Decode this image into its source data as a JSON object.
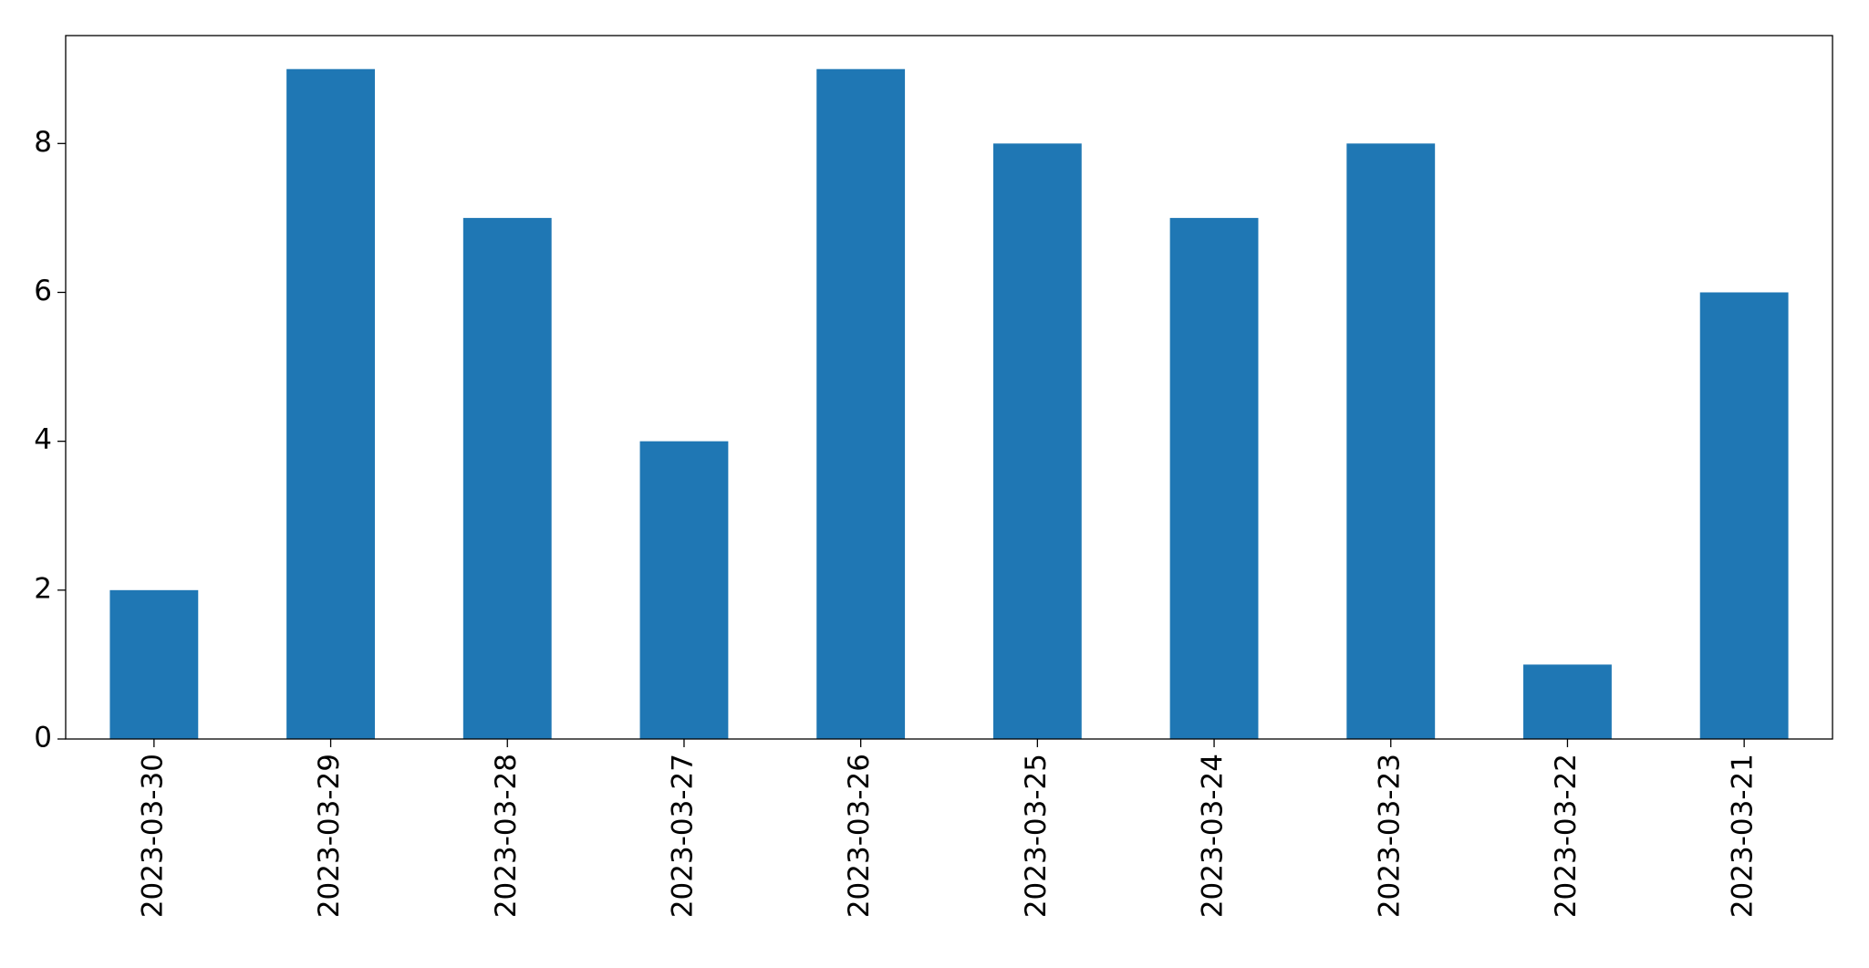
{
  "chart_data": {
    "type": "bar",
    "categories": [
      "2023-03-30",
      "2023-03-29",
      "2023-03-28",
      "2023-03-27",
      "2023-03-26",
      "2023-03-25",
      "2023-03-24",
      "2023-03-23",
      "2023-03-22",
      "2023-03-21"
    ],
    "values": [
      2,
      9,
      7,
      4,
      9,
      8,
      7,
      8,
      1,
      6
    ],
    "color": "#1f77b4",
    "ylim": [
      0,
      9.45
    ],
    "yticks": [
      0,
      2,
      4,
      6,
      8
    ],
    "grid": false
  }
}
